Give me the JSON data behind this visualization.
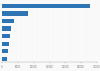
{
  "values": [
    27800,
    8200,
    3800,
    2900,
    2500,
    2100,
    1800,
    1600
  ],
  "bar_color": "#2e75b6",
  "background_color": "#f9f9f9",
  "xlim": [
    0,
    30000
  ],
  "xticks": [
    0,
    5000,
    10000,
    15000,
    20000,
    25000,
    30000
  ],
  "bar_height": 0.55
}
